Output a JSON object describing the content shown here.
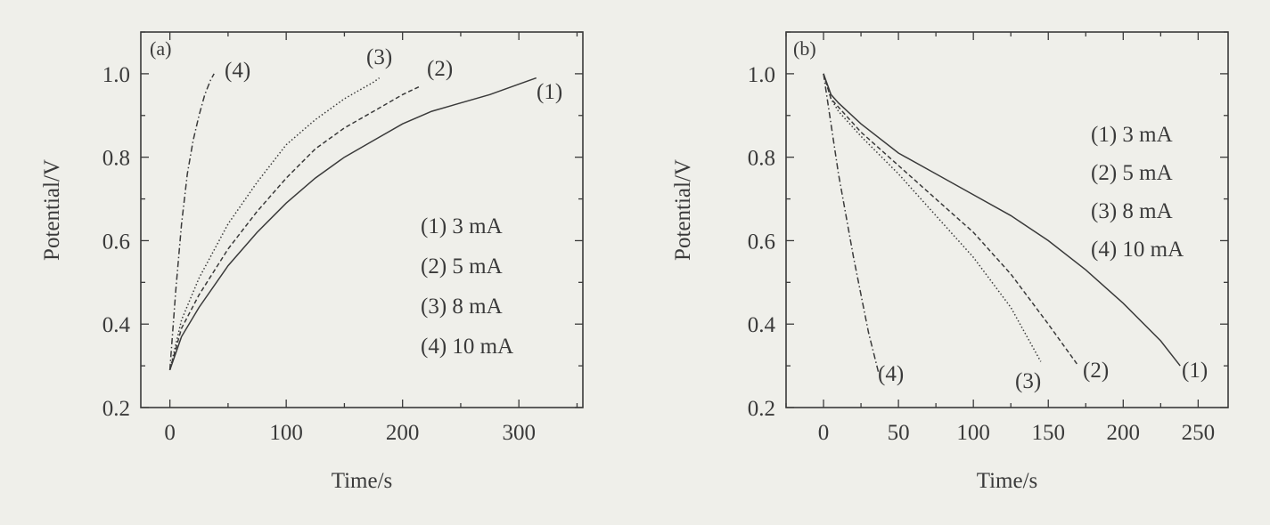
{
  "chart_data": [
    {
      "panel": "(a)",
      "type": "line",
      "xlabel": "Time/s",
      "ylabel": "Potential/V",
      "xlim": [
        -25,
        355
      ],
      "ylim": [
        0.2,
        1.1
      ],
      "xticks": [
        0,
        100,
        200,
        300
      ],
      "yticks": [
        0.2,
        0.4,
        0.6,
        0.8,
        1.0
      ],
      "ytick_labels": [
        "0.2",
        "0.4",
        "0.6",
        "0.8",
        "1.0"
      ],
      "grid": false,
      "legend": {
        "placement": "center-right",
        "entries": [
          "(1) 3 mA",
          "(2) 5 mA",
          "(3) 8 mA",
          "(4) 10 mA"
        ]
      },
      "series": [
        {
          "name": "(1) 3 mA",
          "curve_label": "(1)",
          "dash": "solid",
          "x": [
            0,
            10,
            25,
            50,
            75,
            100,
            125,
            150,
            175,
            200,
            225,
            250,
            275,
            300,
            315
          ],
          "y": [
            0.29,
            0.37,
            0.44,
            0.54,
            0.62,
            0.69,
            0.75,
            0.8,
            0.84,
            0.88,
            0.91,
            0.93,
            0.95,
            0.975,
            0.99
          ]
        },
        {
          "name": "(2) 5 mA",
          "curve_label": "(2)",
          "dash": "dashed",
          "x": [
            0,
            10,
            25,
            50,
            75,
            100,
            125,
            150,
            175,
            200,
            215
          ],
          "y": [
            0.29,
            0.39,
            0.47,
            0.58,
            0.67,
            0.75,
            0.82,
            0.87,
            0.91,
            0.95,
            0.97
          ]
        },
        {
          "name": "(3) 8 mA",
          "curve_label": "(3)",
          "dash": "dotted",
          "x": [
            0,
            10,
            25,
            50,
            75,
            100,
            125,
            150,
            175,
            180
          ],
          "y": [
            0.29,
            0.41,
            0.51,
            0.64,
            0.74,
            0.83,
            0.89,
            0.94,
            0.98,
            0.99
          ]
        },
        {
          "name": "(4) 10 mA",
          "curve_label": "(4)",
          "dash": "dashdot",
          "x": [
            0,
            5,
            10,
            15,
            20,
            25,
            30,
            35,
            38
          ],
          "y": [
            0.29,
            0.48,
            0.64,
            0.76,
            0.84,
            0.9,
            0.95,
            0.985,
            1.0
          ]
        }
      ]
    },
    {
      "panel": "(b)",
      "type": "line",
      "xlabel": "Time/s",
      "ylabel": "Potential/V",
      "xlim": [
        -25,
        270
      ],
      "ylim": [
        0.2,
        1.1
      ],
      "xticks": [
        0,
        50,
        100,
        150,
        200,
        250
      ],
      "yticks": [
        0.2,
        0.4,
        0.6,
        0.8,
        1.0
      ],
      "ytick_labels": [
        "0.2",
        "0.4",
        "0.6",
        "0.8",
        "1.0"
      ],
      "grid": false,
      "legend": {
        "placement": "top-right",
        "entries": [
          "(1) 3 mA",
          "(2) 5 mA",
          "(3) 8 mA",
          "(4) 10 mA"
        ]
      },
      "series": [
        {
          "name": "(1) 3 mA",
          "curve_label": "(1)",
          "dash": "solid",
          "x": [
            0,
            5,
            10,
            25,
            50,
            75,
            100,
            125,
            150,
            175,
            200,
            225,
            238
          ],
          "y": [
            1.0,
            0.95,
            0.93,
            0.88,
            0.81,
            0.76,
            0.71,
            0.66,
            0.6,
            0.53,
            0.45,
            0.36,
            0.3
          ]
        },
        {
          "name": "(2) 5 mA",
          "curve_label": "(2)",
          "dash": "dashed",
          "x": [
            0,
            5,
            10,
            25,
            50,
            75,
            100,
            125,
            150,
            170
          ],
          "y": [
            1.0,
            0.94,
            0.92,
            0.86,
            0.78,
            0.7,
            0.62,
            0.52,
            0.4,
            0.3
          ]
        },
        {
          "name": "(3) 8 mA",
          "curve_label": "(3)",
          "dash": "dotted",
          "x": [
            0,
            5,
            10,
            25,
            50,
            75,
            100,
            125,
            145
          ],
          "y": [
            1.0,
            0.94,
            0.91,
            0.85,
            0.76,
            0.66,
            0.56,
            0.44,
            0.31
          ]
        },
        {
          "name": "(4) 10 mA",
          "curve_label": "(4)",
          "dash": "dashdot",
          "x": [
            0,
            5,
            10,
            20,
            30,
            37
          ],
          "y": [
            1.0,
            0.88,
            0.76,
            0.56,
            0.38,
            0.28
          ]
        }
      ]
    }
  ]
}
